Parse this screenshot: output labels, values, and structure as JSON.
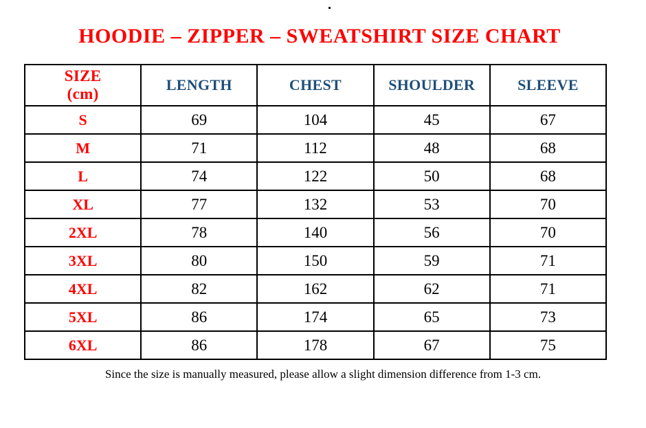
{
  "page": {
    "stray_mark": ".",
    "title": "HOODIE – ZIPPER – SWEATSHIRT SIZE CHART",
    "footnote": "Since the size is manually measured, please allow a slight dimension difference from 1-3 cm."
  },
  "colors": {
    "title_red": "#ff0000",
    "header_navy": "#1f4e79",
    "size_label_red": "#ff0000",
    "value_black": "#000000",
    "border_black": "#000000",
    "background": "#ffffff"
  },
  "table": {
    "unit": "cm",
    "header": {
      "size_line1": "SIZE",
      "size_line2": "(cm)",
      "length": "LENGTH",
      "chest": "CHEST",
      "shoulder": "SHOULDER",
      "sleeve": "SLEEVE"
    },
    "rows": [
      {
        "size": "S",
        "length": "69",
        "chest": "104",
        "shoulder": "45",
        "sleeve": "67"
      },
      {
        "size": "M",
        "length": "71",
        "chest": "112",
        "shoulder": "48",
        "sleeve": "68"
      },
      {
        "size": "L",
        "length": "74",
        "chest": "122",
        "shoulder": "50",
        "sleeve": "68"
      },
      {
        "size": "XL",
        "length": "77",
        "chest": "132",
        "shoulder": "53",
        "sleeve": "70"
      },
      {
        "size": "2XL",
        "length": "78",
        "chest": "140",
        "shoulder": "56",
        "sleeve": "70"
      },
      {
        "size": "3XL",
        "length": "80",
        "chest": "150",
        "shoulder": "59",
        "sleeve": "71"
      },
      {
        "size": "4XL",
        "length": "82",
        "chest": "162",
        "shoulder": "62",
        "sleeve": "71"
      },
      {
        "size": "5XL",
        "length": "86",
        "chest": "174",
        "shoulder": "65",
        "sleeve": "73"
      },
      {
        "size": "6XL",
        "length": "86",
        "chest": "178",
        "shoulder": "67",
        "sleeve": "75"
      }
    ]
  }
}
